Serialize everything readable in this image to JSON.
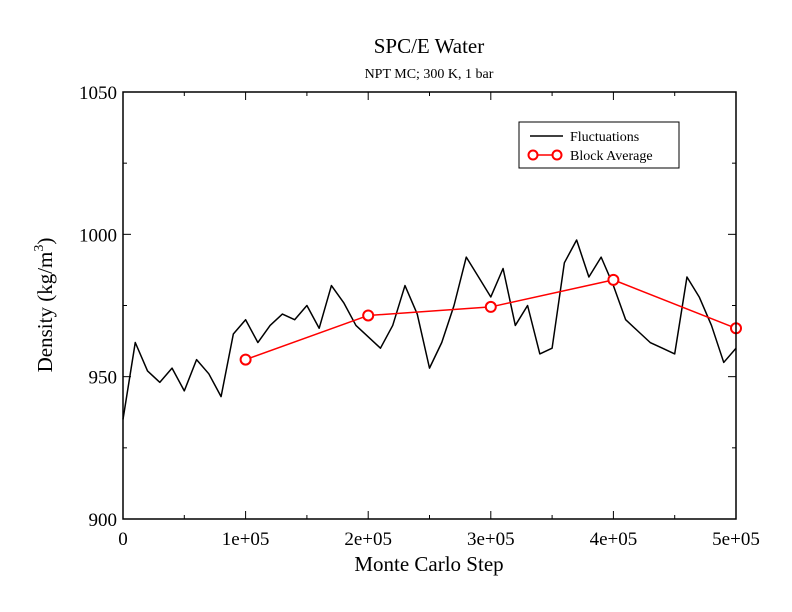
{
  "chart_data": {
    "type": "line",
    "title": "SPC/E Water",
    "subtitle": "NPT MC; 300 K, 1 bar",
    "xlabel": "Monte Carlo Step",
    "ylabel": "Density (kg/m",
    "ylabel_superscript": "3",
    "ylabel_close": ")",
    "xlim": [
      0,
      500000
    ],
    "ylim": [
      900,
      1050
    ],
    "x_ticks": [
      {
        "value": 0,
        "label": "0"
      },
      {
        "value": 100000,
        "label": "1e+05"
      },
      {
        "value": 200000,
        "label": "2e+05"
      },
      {
        "value": 300000,
        "label": "3e+05"
      },
      {
        "value": 400000,
        "label": "4e+05"
      },
      {
        "value": 500000,
        "label": "5e+05"
      }
    ],
    "y_ticks": [
      {
        "value": 900,
        "label": "900"
      },
      {
        "value": 950,
        "label": "950"
      },
      {
        "value": 1000,
        "label": "1000"
      },
      {
        "value": 1050,
        "label": "1050"
      }
    ],
    "grid": false,
    "legend_position": "top-right",
    "series": [
      {
        "name": "Fluctuations",
        "color": "#000000",
        "marker": "none",
        "x": [
          0,
          10000,
          20000,
          30000,
          40000,
          50000,
          60000,
          70000,
          80000,
          90000,
          100000,
          110000,
          120000,
          130000,
          140000,
          150000,
          160000,
          170000,
          180000,
          190000,
          200000,
          210000,
          220000,
          230000,
          240000,
          250000,
          260000,
          270000,
          280000,
          290000,
          300000,
          310000,
          320000,
          330000,
          340000,
          350000,
          360000,
          370000,
          380000,
          390000,
          400000,
          410000,
          420000,
          430000,
          440000,
          450000,
          460000,
          470000,
          480000,
          490000,
          500000
        ],
        "y": [
          935,
          962,
          952,
          948,
          953,
          945,
          956,
          951,
          943,
          965,
          970,
          962,
          968,
          972,
          970,
          975,
          967,
          982,
          976,
          968,
          964,
          960,
          968,
          982,
          972,
          953,
          962,
          975,
          992,
          985,
          978,
          988,
          968,
          975,
          958,
          960,
          990,
          998,
          985,
          992,
          982,
          970,
          966,
          962,
          960,
          958,
          985,
          978,
          968,
          955,
          960
        ]
      },
      {
        "name": "Block Average",
        "color": "#ff0000",
        "marker": "circle",
        "x": [
          100000,
          200000,
          300000,
          400000,
          500000
        ],
        "y": [
          956,
          971.5,
          974.5,
          984,
          967
        ]
      }
    ]
  }
}
